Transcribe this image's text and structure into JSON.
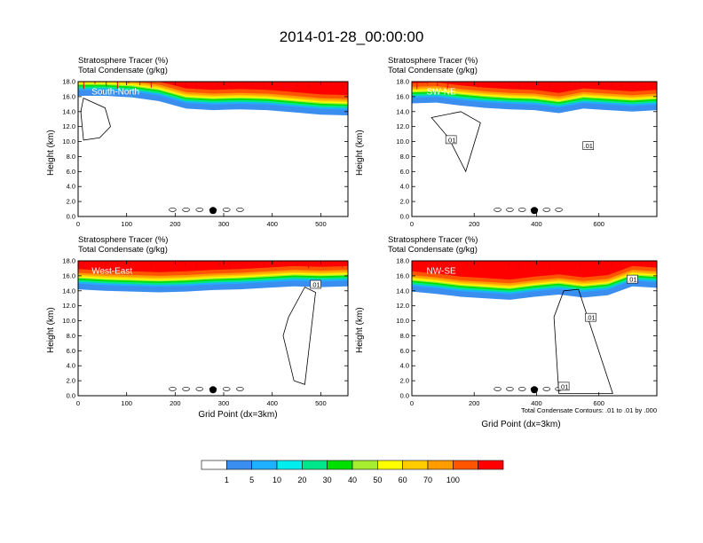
{
  "title": "2014-01-28_00:00:00",
  "colors": {
    "levels": [
      "#ffffff",
      "#3a8ef0",
      "#1fb0ff",
      "#00eeee",
      "#00e68a",
      "#00e000",
      "#a8ee30",
      "#ffff00",
      "#ffcc00",
      "#ff9c00",
      "#ff5500",
      "#ff0000"
    ],
    "contour": "#000000"
  },
  "colorbar": {
    "labels": [
      "1",
      "5",
      "10",
      "20",
      "30",
      "40",
      "50",
      "60",
      "70",
      "100"
    ]
  },
  "chart_data": [
    {
      "type": "heatmap",
      "panel": "South-North",
      "subtitle_1": "Stratosphere Tracer   (%)",
      "subtitle_2": "Total Condensate   (g/kg)",
      "ylabel": "Height (km)",
      "xlabel": "",
      "xlim": [
        0,
        556
      ],
      "ylim": [
        0,
        18
      ],
      "xticks": [
        "0",
        "100",
        "200",
        "300",
        "400",
        "500"
      ],
      "yticks": [
        "0.0",
        "2.0",
        "4.0",
        "6.0",
        "8.0",
        "10.0",
        "12.0",
        "14.0",
        "16.0",
        "18.0"
      ],
      "contour_labels": []
    },
    {
      "type": "heatmap",
      "panel": "SW-NE",
      "subtitle_1": "Stratosphere Tracer   (%)",
      "subtitle_2": "Total Condensate   (g/kg)",
      "ylabel": "Height (km)",
      "xlabel": "",
      "xlim": [
        0,
        786
      ],
      "ylim": [
        0,
        18
      ],
      "xticks": [
        "0",
        "200",
        "400",
        "600"
      ],
      "yticks": [
        "0.0",
        "2.0",
        "4.0",
        "6.0",
        "8.0",
        "10.0",
        "12.0",
        "14.0",
        "16.0",
        "18.0"
      ],
      "contour_labels": [
        ".01",
        ".01"
      ]
    },
    {
      "type": "heatmap",
      "panel": "West-East",
      "subtitle_1": "Stratosphere Tracer   (%)",
      "subtitle_2": "Total Condensate   (g/kg)",
      "ylabel": "Height (km)",
      "xlabel": "Grid Point (dx=3km)",
      "xlim": [
        0,
        556
      ],
      "ylim": [
        0,
        18
      ],
      "xticks": [
        "0",
        "100",
        "200",
        "300",
        "400",
        "500"
      ],
      "yticks": [
        "0.0",
        "2.0",
        "4.0",
        "6.0",
        "8.0",
        "10.0",
        "12.0",
        "14.0",
        "16.0",
        "18.0"
      ],
      "contour_labels": [
        ".01"
      ]
    },
    {
      "type": "heatmap",
      "panel": "NW-SE",
      "subtitle_1": "Stratosphere Tracer   (%)",
      "subtitle_2": "Total Condensate   (g/kg)",
      "ylabel": "Height (km)",
      "xlabel": "Grid Point (dx=3km)",
      "footnote": "Total Condensate Contours: .01 to .01 by .000",
      "xlim": [
        0,
        786
      ],
      "ylim": [
        0,
        18
      ],
      "xticks": [
        "0",
        "200",
        "400",
        "600"
      ],
      "yticks": [
        "0.0",
        "2.0",
        "4.0",
        "6.0",
        "8.0",
        "10.0",
        "12.0",
        "14.0",
        "16.0",
        "18.0"
      ],
      "contour_labels": [
        ".01",
        ".01",
        ".01"
      ]
    }
  ]
}
